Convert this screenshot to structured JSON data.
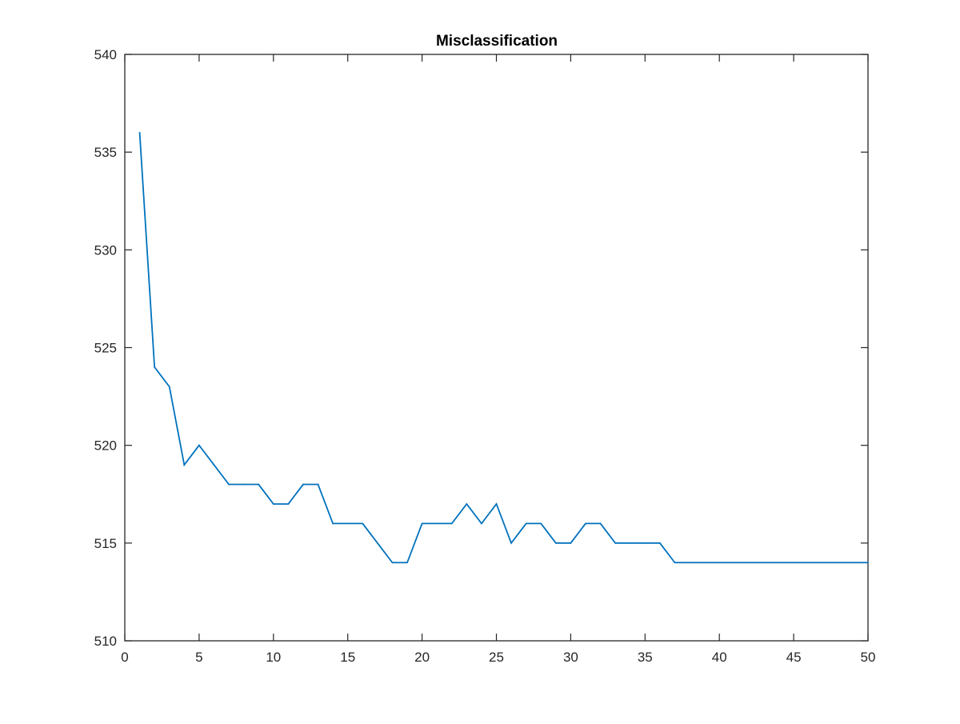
{
  "chart_data": {
    "type": "line",
    "title": "Misclassification",
    "xlabel": "",
    "ylabel": "",
    "xlim": [
      0,
      50
    ],
    "ylim": [
      510,
      540
    ],
    "xticks": [
      0,
      5,
      10,
      15,
      20,
      25,
      30,
      35,
      40,
      45,
      50
    ],
    "yticks": [
      510,
      515,
      520,
      525,
      530,
      535,
      540
    ],
    "grid": false,
    "legend": "none",
    "series": [
      {
        "color": "#0072BD",
        "x": [
          1,
          2,
          3,
          4,
          5,
          6,
          7,
          8,
          9,
          10,
          11,
          12,
          13,
          14,
          15,
          16,
          17,
          18,
          19,
          20,
          21,
          22,
          23,
          24,
          25,
          26,
          27,
          28,
          29,
          30,
          31,
          32,
          33,
          34,
          35,
          36,
          37,
          38,
          39,
          40,
          41,
          42,
          43,
          44,
          45,
          46,
          47,
          48,
          49,
          50
        ],
        "y": [
          536,
          524,
          523,
          519,
          520,
          519,
          518,
          518,
          518,
          517,
          517,
          518,
          518,
          516,
          516,
          516,
          515,
          514,
          514,
          516,
          516,
          516,
          517,
          516,
          517,
          515,
          516,
          516,
          515,
          515,
          516,
          516,
          515,
          515,
          515,
          515,
          514,
          514,
          514,
          514,
          514,
          514,
          514,
          514,
          514,
          514,
          514,
          514,
          514,
          514
        ]
      }
    ]
  }
}
